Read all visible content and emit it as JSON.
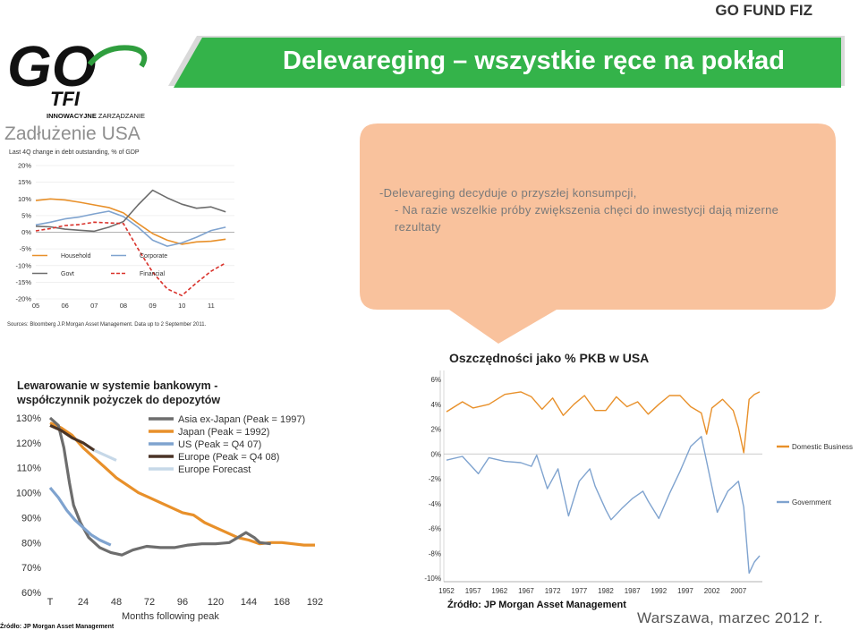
{
  "header": {
    "brand": "GO FUND FIZ",
    "title": "Delevareging – wszystkie ręce na pokład",
    "logo_text": "GO",
    "logo_tfi": "TFI",
    "logo_tagline_bold": "INNOWACYJNE",
    "logo_tagline": " ZARZĄDZANIE"
  },
  "section": {
    "debt_heading": "Zadłużenie USA"
  },
  "bubble": {
    "lines": [
      "-Delevareging decyduje o przyszłej konsumpcji,",
      "- Na razie wszelkie próby zwiększenia chęci do inwestycji dają mizerne rezultaty"
    ],
    "color": "#f9c29d"
  },
  "footer": {
    "place_date": "Warszawa, marzec 2012 r."
  },
  "colors": {
    "banner": "#34b34a",
    "logo_green": "#2f9e3e",
    "orange": "#e8902a",
    "gray": "#6d6d6d",
    "red": "#d9322b",
    "blue": "#7fa3cf",
    "dark_brown": "#4a3426",
    "light_blue": "#c6d8e8",
    "light_gray": "#a6a6a6"
  },
  "chart_data": [
    {
      "type": "line",
      "title": "Last 4Q change in debt outstanding, % of GDP",
      "x": [
        "05",
        "06",
        "07",
        "08",
        "09",
        "10",
        "11"
      ],
      "ylim": [
        -20,
        20
      ],
      "yticks": [
        "20%",
        "15%",
        "10%",
        "5%",
        "0%",
        "-5%",
        "-10%",
        "-15%",
        "-20%"
      ],
      "legend": [
        "Household",
        "Corporate",
        "Govt",
        "Financial"
      ],
      "series": [
        {
          "name": "Household",
          "color": "#e8902a",
          "style": "solid",
          "points": [
            [
              2005,
              9.5
            ],
            [
              2005.5,
              10
            ],
            [
              2006,
              9.7
            ],
            [
              2006.5,
              9
            ],
            [
              2007,
              8.2
            ],
            [
              2007.5,
              7.4
            ],
            [
              2008,
              5.8
            ],
            [
              2008.5,
              2.6
            ],
            [
              2009,
              -0.4
            ],
            [
              2009.5,
              -2.4
            ],
            [
              2010,
              -3.6
            ],
            [
              2010.5,
              -2.9
            ],
            [
              2011,
              -2.7
            ],
            [
              2011.5,
              -2.1
            ]
          ]
        },
        {
          "name": "Corporate",
          "color": "#7fa3cf",
          "style": "solid",
          "points": [
            [
              2005,
              2.2
            ],
            [
              2005.5,
              3
            ],
            [
              2006,
              4
            ],
            [
              2006.5,
              4.6
            ],
            [
              2007,
              5.5
            ],
            [
              2007.5,
              6.3
            ],
            [
              2008,
              4.7
            ],
            [
              2008.5,
              1.5
            ],
            [
              2009,
              -2.4
            ],
            [
              2009.5,
              -4.2
            ],
            [
              2010,
              -3.2
            ],
            [
              2010.5,
              -1.5
            ],
            [
              2011,
              0.5
            ],
            [
              2011.5,
              1.5
            ]
          ]
        },
        {
          "name": "Govt",
          "color": "#6d6d6d",
          "style": "solid",
          "points": [
            [
              2005,
              1.8
            ],
            [
              2005.5,
              1.6
            ],
            [
              2006,
              0.9
            ],
            [
              2006.5,
              0.6
            ],
            [
              2007,
              0.3
            ],
            [
              2007.5,
              1.5
            ],
            [
              2008,
              3.2
            ],
            [
              2008.5,
              8.2
            ],
            [
              2009,
              12.6
            ],
            [
              2009.5,
              10.3
            ],
            [
              2010,
              8.4
            ],
            [
              2010.5,
              7.2
            ],
            [
              2011,
              7.6
            ],
            [
              2011.5,
              6.1
            ]
          ]
        },
        {
          "name": "Financial",
          "color": "#d9322b",
          "style": "dashed",
          "points": [
            [
              2005,
              0.4
            ],
            [
              2005.5,
              1.1
            ],
            [
              2006,
              2
            ],
            [
              2006.5,
              2.3
            ],
            [
              2007,
              3
            ],
            [
              2007.5,
              2.8
            ],
            [
              2008,
              2.6
            ],
            [
              2008.5,
              -5
            ],
            [
              2009,
              -12
            ],
            [
              2009.5,
              -17
            ],
            [
              2010,
              -19
            ],
            [
              2010.5,
              -15.2
            ],
            [
              2011,
              -11.7
            ],
            [
              2011.5,
              -9.2
            ]
          ]
        }
      ],
      "source": "Sources: Bloomberg J.P.Morgan Asset Management. Data up to 2 September 2011."
    },
    {
      "type": "line",
      "title": "Lewarowanie w systemie bankowym - współczynnik pożyczek do depozytów",
      "xlabel": "Months following peak",
      "x": [
        "T",
        "24",
        "48",
        "72",
        "96",
        "120",
        "144",
        "168",
        "192"
      ],
      "ylim": [
        60,
        130
      ],
      "yticks": [
        "130%",
        "120%",
        "110%",
        "100%",
        "90%",
        "80%",
        "70%",
        "60%"
      ],
      "legend": [
        "Asia ex-Japan (Peak = 1997)",
        "Japan (Peak = 1992)",
        "US (Peak = Q4 07)",
        "Europe (Peak = Q4 08)",
        "Europe Forecast"
      ],
      "series": [
        {
          "name": "Asia ex-Japan (Peak = 1997)",
          "color": "#6d6d6d",
          "points": [
            [
              0,
              130
            ],
            [
              6,
              127
            ],
            [
              10,
              118
            ],
            [
              14,
              104
            ],
            [
              17,
              95
            ],
            [
              22,
              88
            ],
            [
              28,
              82
            ],
            [
              36,
              78
            ],
            [
              44,
              76
            ],
            [
              52,
              75
            ],
            [
              60,
              77
            ],
            [
              70,
              78.5
            ],
            [
              80,
              78
            ],
            [
              90,
              78
            ],
            [
              100,
              79
            ],
            [
              110,
              79.5
            ],
            [
              120,
              79.5
            ],
            [
              130,
              80
            ],
            [
              136,
              82
            ],
            [
              142,
              84
            ],
            [
              148,
              82
            ],
            [
              152,
              80
            ],
            [
              160,
              79.5
            ]
          ]
        },
        {
          "name": "Japan (Peak = 1992)",
          "color": "#e8902a",
          "points": [
            [
              0,
              128
            ],
            [
              8,
              126
            ],
            [
              16,
              123
            ],
            [
              24,
              118
            ],
            [
              32,
              114
            ],
            [
              40,
              110
            ],
            [
              48,
              106
            ],
            [
              56,
              103
            ],
            [
              64,
              100
            ],
            [
              72,
              98
            ],
            [
              80,
              96
            ],
            [
              88,
              94
            ],
            [
              96,
              92
            ],
            [
              104,
              91
            ],
            [
              112,
              88
            ],
            [
              120,
              86
            ],
            [
              128,
              84
            ],
            [
              136,
              82
            ],
            [
              144,
              81
            ],
            [
              152,
              79.5
            ],
            [
              160,
              80
            ],
            [
              168,
              80
            ],
            [
              176,
              79.5
            ],
            [
              184,
              79
            ],
            [
              192,
              79
            ]
          ]
        },
        {
          "name": "US (Peak = Q4 07)",
          "color": "#7fa3cf",
          "points": [
            [
              0,
              102
            ],
            [
              6,
              98
            ],
            [
              12,
              93
            ],
            [
              18,
              89
            ],
            [
              24,
              86
            ],
            [
              30,
              83
            ],
            [
              36,
              81
            ],
            [
              44,
              79
            ]
          ]
        },
        {
          "name": "Europe (Peak = Q4 08)",
          "color": "#4a3426",
          "points": [
            [
              0,
              127
            ],
            [
              8,
              125
            ],
            [
              16,
              122
            ],
            [
              24,
              120
            ],
            [
              32,
              117
            ]
          ]
        },
        {
          "name": "Europe Forecast",
          "color": "#c6d8e8",
          "points": [
            [
              32,
              117
            ],
            [
              40,
              115
            ],
            [
              48,
              113
            ]
          ]
        }
      ],
      "source": "Źródło: JP Morgan Asset Management"
    },
    {
      "type": "line",
      "title": "Oszczędności jako % PKB w USA",
      "x": [
        "1952",
        "1957",
        "1962",
        "1967",
        "1972",
        "1977",
        "1982",
        "1987",
        "1992",
        "1997",
        "2002",
        "2007"
      ],
      "ylim": [
        -10,
        6
      ],
      "yticks": [
        "6%",
        "4%",
        "2%",
        "0%",
        "-2%",
        "-4%",
        "-6%",
        "-8%",
        "-10%"
      ],
      "legend": [
        "Domestic Business",
        "Government"
      ],
      "series": [
        {
          "name": "Domestic Business",
          "color": "#e8902a",
          "points": [
            [
              1952,
              3.4
            ],
            [
              1955,
              4.2
            ],
            [
              1957,
              3.7
            ],
            [
              1960,
              4
            ],
            [
              1963,
              4.8
            ],
            [
              1966,
              5
            ],
            [
              1968,
              4.6
            ],
            [
              1970,
              3.6
            ],
            [
              1972,
              4.5
            ],
            [
              1974,
              3.1
            ],
            [
              1976,
              4
            ],
            [
              1978,
              4.7
            ],
            [
              1980,
              3.5
            ],
            [
              1982,
              3.5
            ],
            [
              1984,
              4.6
            ],
            [
              1986,
              3.8
            ],
            [
              1988,
              4.2
            ],
            [
              1990,
              3.2
            ],
            [
              1992,
              4
            ],
            [
              1994,
              4.7
            ],
            [
              1996,
              4.7
            ],
            [
              1998,
              3.8
            ],
            [
              2000,
              3.3
            ],
            [
              2001,
              1.6
            ],
            [
              2002,
              3.7
            ],
            [
              2004,
              4.4
            ],
            [
              2006,
              3.5
            ],
            [
              2007,
              2.1
            ],
            [
              2008,
              0.1
            ],
            [
              2009,
              4.4
            ],
            [
              2010,
              4.8
            ],
            [
              2011,
              5
            ]
          ]
        },
        {
          "name": "Government",
          "color": "#7fa3cf",
          "points": [
            [
              1952,
              -0.5
            ],
            [
              1955,
              -0.2
            ],
            [
              1958,
              -1.6
            ],
            [
              1960,
              -0.3
            ],
            [
              1963,
              -0.6
            ],
            [
              1966,
              -0.7
            ],
            [
              1968,
              -1
            ],
            [
              1969,
              -0.1
            ],
            [
              1971,
              -2.8
            ],
            [
              1973,
              -1.2
            ],
            [
              1975,
              -5
            ],
            [
              1977,
              -2.2
            ],
            [
              1979,
              -1.2
            ],
            [
              1980,
              -2.6
            ],
            [
              1982,
              -4.5
            ],
            [
              1983,
              -5.3
            ],
            [
              1985,
              -4.4
            ],
            [
              1987,
              -3.6
            ],
            [
              1989,
              -3
            ],
            [
              1990,
              -3.8
            ],
            [
              1992,
              -5.2
            ],
            [
              1994,
              -3.2
            ],
            [
              1996,
              -1.4
            ],
            [
              1998,
              0.6
            ],
            [
              2000,
              1.4
            ],
            [
              2001,
              -0.6
            ],
            [
              2003,
              -4.7
            ],
            [
              2005,
              -3
            ],
            [
              2007,
              -2.2
            ],
            [
              2008,
              -4.3
            ],
            [
              2009,
              -9.6
            ],
            [
              2010,
              -8.7
            ],
            [
              2011,
              -8.2
            ]
          ]
        }
      ],
      "source": "Źródło: JP Morgan Asset Management"
    }
  ]
}
